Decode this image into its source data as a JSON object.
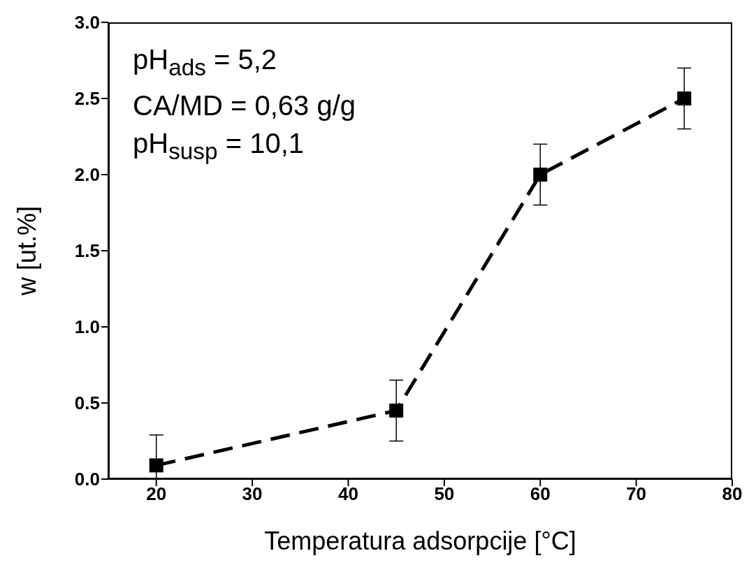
{
  "chart_data": {
    "type": "line",
    "xlabel": "Temperatura adsorpcije [°C]",
    "ylabel": "w [ut.%]",
    "x": [
      20,
      45,
      60,
      75
    ],
    "values": [
      0.09,
      0.45,
      2.0,
      2.5
    ],
    "errors": [
      [
        0,
        0.29
      ],
      0.2,
      0.2,
      0.2
    ],
    "color": "#000000",
    "marker": "square",
    "line_style": "dashed",
    "grid": false,
    "legend": false,
    "xlim": [
      15,
      80
    ],
    "xticks": [
      20,
      30,
      40,
      50,
      60,
      70,
      80
    ],
    "ylim": [
      0,
      3
    ],
    "yticks": [
      {
        "value": 0,
        "label": "0.0"
      },
      {
        "value": 0.5,
        "label": "0.5"
      },
      {
        "value": 1,
        "label": "1.0"
      },
      {
        "value": 1.5,
        "label": "1.5"
      },
      {
        "value": 2,
        "label": "2.0"
      },
      {
        "value": 2.5,
        "label": "2.5"
      },
      {
        "value": 3,
        "label": "3.0"
      }
    ],
    "annotations": [
      "pH$_{ads}$ = 5,2",
      "CA/MD = 0,63 g/g",
      "pH$_{susp}$ = 10,1"
    ]
  }
}
